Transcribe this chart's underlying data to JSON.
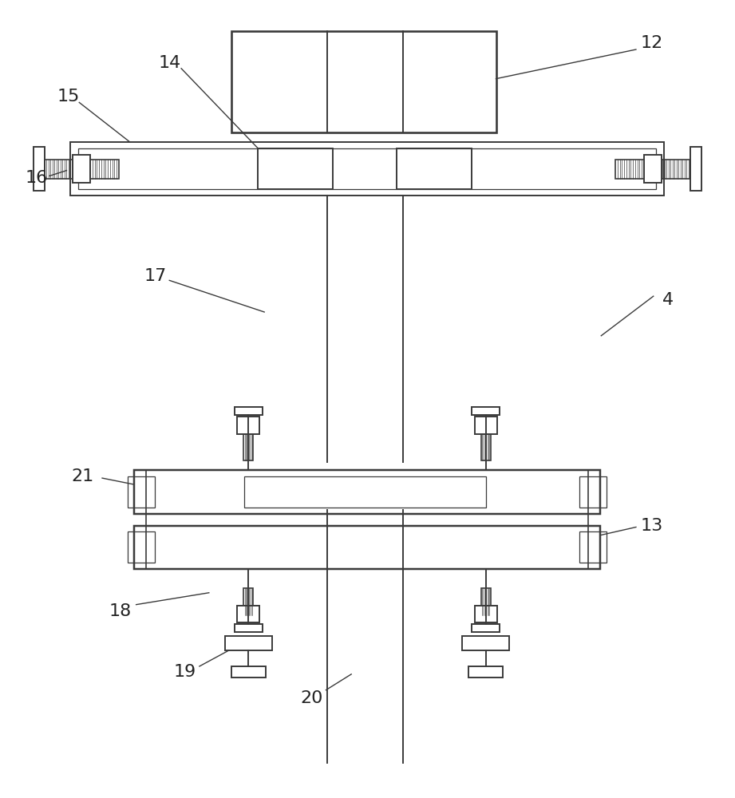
{
  "bg_color": "#ffffff",
  "line_color": "#3a3a3a",
  "lw": 1.4,
  "tlw": 0.9,
  "font_size": 16
}
